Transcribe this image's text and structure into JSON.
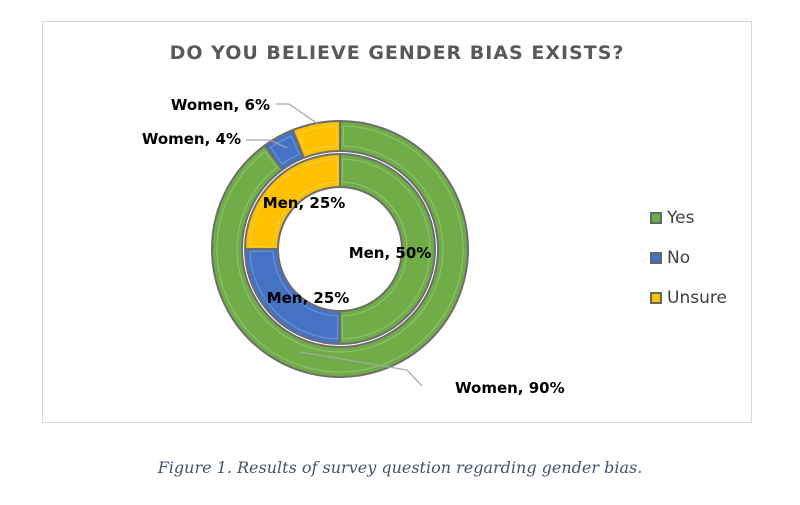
{
  "chart_data": {
    "type": "donut",
    "title": "DO YOU BELIEVE GENDER BIAS EXISTS?",
    "categories": [
      "Yes",
      "No",
      "Unsure"
    ],
    "colors": {
      "Yes": "#70ad47",
      "No": "#4472c4",
      "Unsure": "#ffc000"
    },
    "series": [
      {
        "name": "Women",
        "ring": "outer",
        "values": [
          90,
          4,
          6
        ],
        "labels": [
          "Women, 90%",
          "Women, 4%",
          "Women, 6%"
        ]
      },
      {
        "name": "Men",
        "ring": "inner",
        "values": [
          50,
          25,
          25
        ],
        "labels": [
          "Men, 50%",
          "Men, 25%",
          "Men, 25%"
        ]
      }
    ],
    "legend": {
      "position": "right",
      "items": [
        "Yes",
        "No",
        "Unsure"
      ]
    }
  },
  "caption": "Figure 1. Results of survey question regarding gender bias."
}
